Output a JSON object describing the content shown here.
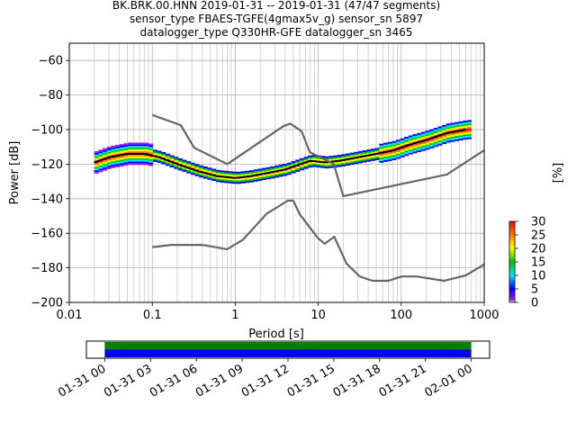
{
  "title": {
    "line1": "BK.BRK.00.HNN   2019-01-31 -- 2019-01-31  (47/47 segments)",
    "line2": "sensor_type FBAES-TGFE(4gmax5v_g) sensor_sn 5897",
    "line3": "datalogger_type Q330HR-GFE datalogger_sn 3465"
  },
  "chart_data": [
    {
      "type": "heatmap",
      "subtype": "probabilistic-power-spectral-density",
      "xlabel": "Period [s]",
      "ylabel": "Power [dB]",
      "xscale": "log",
      "xlim": [
        0.01,
        1000
      ],
      "ylim": [
        -200,
        -50
      ],
      "x_ticks": [
        0.01,
        0.1,
        1,
        10,
        100,
        1000
      ],
      "x_tick_labels": [
        "0.01",
        "0.1",
        "1",
        "10",
        "100",
        "1000"
      ],
      "y_ticks": [
        -200,
        -180,
        -160,
        -140,
        -120,
        -100,
        -80,
        -60
      ],
      "y_tick_labels": [
        "−200",
        "−180",
        "−160",
        "−140",
        "−120",
        "−100",
        "−80",
        "−60"
      ],
      "grid": true,
      "colorbar": {
        "label": "[%]",
        "min": 0,
        "max": 30,
        "ticks": [
          0,
          5,
          10,
          15,
          20,
          25,
          30
        ],
        "tick_labels": [
          "0",
          "5",
          "10",
          "15",
          "20",
          "25",
          "30"
        ],
        "colormap": [
          "#ffffff",
          "#a020f0",
          "#0000ff",
          "#00e5ff",
          "#00c800",
          "#ffff00",
          "#ff8000",
          "#ff0000"
        ]
      },
      "series": [
        {
          "name": "",
          "role": "median",
          "color": "#000000",
          "x": [
            0.02,
            0.03,
            0.05,
            0.08,
            0.12,
            0.2,
            0.35,
            0.6,
            1,
            1.5,
            2.5,
            4,
            6,
            8,
            12,
            18,
            30,
            50,
            80,
            120,
            200,
            350,
            600
          ],
          "y": [
            -119,
            -116,
            -114,
            -114,
            -116,
            -120,
            -124,
            -127,
            -128,
            -127,
            -125,
            -123,
            -120,
            -118,
            -119,
            -118,
            -116,
            -114,
            -112,
            -109,
            -106,
            -102,
            -100
          ]
        },
        {
          "name": "",
          "role": "new-high-noise-model",
          "color": "#666666",
          "x": [
            0.1,
            0.22,
            0.32,
            0.8,
            3.8,
            4.6,
            6.3,
            7.9,
            15.4,
            20,
            354.8,
            1000
          ],
          "y": [
            -91.5,
            -97.4,
            -110.5,
            -120,
            -98,
            -96.5,
            -101,
            -113,
            -120,
            -138.5,
            -126,
            -112
          ]
        },
        {
          "name": "",
          "role": "new-low-noise-model",
          "color": "#666666",
          "x": [
            0.1,
            0.17,
            0.4,
            0.8,
            1.24,
            2.4,
            4.3,
            5,
            6,
            10,
            12,
            15.6,
            21.9,
            31.6,
            45,
            70,
            101,
            154,
            328,
            600,
            1000
          ],
          "y": [
            -168,
            -166.7,
            -166.7,
            -169.2,
            -163.7,
            -148.6,
            -141.1,
            -141.1,
            -149,
            -163,
            -166,
            -162,
            -177.5,
            -185,
            -187.5,
            -187.5,
            -185,
            -185,
            -187.5,
            -184.4,
            -178
          ]
        }
      ]
    },
    {
      "type": "timeline",
      "subtype": "data-coverage",
      "x_tick_labels": [
        "01-31 00",
        "01-31 03",
        "01-31 06",
        "01-31 09",
        "01-31 12",
        "01-31 15",
        "01-31 18",
        "01-31 21",
        "02-01 00"
      ],
      "coverage": [
        {
          "name": "",
          "color": "#008000",
          "start_hour": 0,
          "end_hour": 24
        },
        {
          "name": "",
          "color": "#0000ff",
          "start_hour": 0,
          "end_hour": 24
        }
      ],
      "xlim_hours": [
        -1.2,
        25.2
      ]
    }
  ]
}
